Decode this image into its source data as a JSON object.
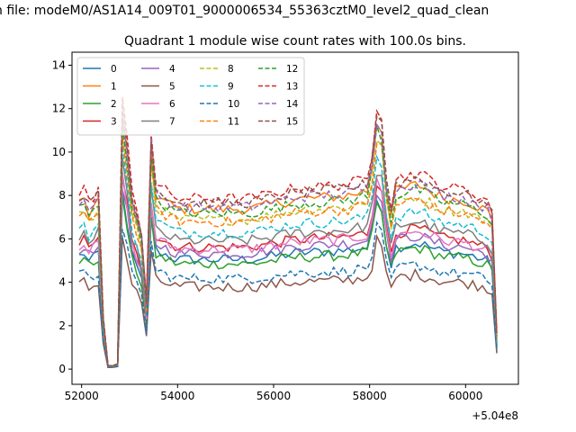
{
  "chart_data": {
    "type": "line",
    "suptitle": "n file: modeM0/AS1A14_009T01_9000006534_55363cztM0_level2_quad_clean",
    "title": "Quadrant 1 module wise count rates with 100.0s bins.",
    "xlabel": "",
    "ylabel": "",
    "x_offset_label": "+5.04e8",
    "xlim": [
      51800,
      61100
    ],
    "ylim": [
      -0.7,
      14.6
    ],
    "xticks": [
      52000,
      54000,
      56000,
      58000,
      60000
    ],
    "xtick_labels": [
      "52000",
      "54000",
      "56000",
      "58000",
      "60000"
    ],
    "yticks": [
      0,
      2,
      4,
      6,
      8,
      10,
      12,
      14
    ],
    "ytick_labels": [
      "0",
      "2",
      "4",
      "6",
      "8",
      "10",
      "12",
      "14"
    ],
    "grid": false,
    "legend_position": "upper-left",
    "legend_columns": 4,
    "x_shape": {
      "start": 51950,
      "step": 100,
      "count": 88,
      "gaps": [
        [
          52650,
          52750
        ]
      ]
    },
    "profile_keypoints": [
      [
        51950,
        1.0
      ],
      [
        52050,
        1.03
      ],
      [
        52150,
        0.95
      ],
      [
        52250,
        0.98
      ],
      [
        52350,
        1.03
      ],
      [
        52450,
        0.3
      ],
      [
        52550,
        0.02
      ],
      [
        52650,
        0.02
      ],
      [
        52750,
        0.03
      ],
      [
        52850,
        1.55
      ],
      [
        52950,
        1.3
      ],
      [
        53050,
        1.0
      ],
      [
        53150,
        0.9
      ],
      [
        53250,
        0.78
      ],
      [
        53350,
        0.4
      ],
      [
        53450,
        1.35
      ],
      [
        53550,
        1.05
      ],
      [
        54000,
        0.97
      ],
      [
        55500,
        0.97
      ],
      [
        56500,
        1.03
      ],
      [
        57500,
        1.05
      ],
      [
        57950,
        1.08
      ],
      [
        58100,
        1.3
      ],
      [
        58200,
        1.7
      ],
      [
        58300,
        1.2
      ],
      [
        58450,
        0.93
      ],
      [
        58550,
        1.08
      ],
      [
        59000,
        1.12
      ],
      [
        59500,
        1.04
      ],
      [
        60000,
        1.02
      ],
      [
        60450,
        0.96
      ],
      [
        60550,
        0.9
      ],
      [
        60650,
        0.2
      ]
    ],
    "series": [
      {
        "name": "0",
        "color": "#1f77b4",
        "dash": "solid",
        "level": 5.2,
        "noise": 0.25
      },
      {
        "name": "1",
        "color": "#ff7f0e",
        "dash": "solid",
        "level": 7.6,
        "noise": 0.25
      },
      {
        "name": "2",
        "color": "#2ca02c",
        "dash": "solid",
        "level": 5.0,
        "noise": 0.25
      },
      {
        "name": "3",
        "color": "#d62728",
        "dash": "solid",
        "level": 5.8,
        "noise": 0.25
      },
      {
        "name": "4",
        "color": "#9467bd",
        "dash": "solid",
        "level": 5.5,
        "noise": 0.25
      },
      {
        "name": "5",
        "color": "#8c564b",
        "dash": "solid",
        "level": 3.9,
        "noise": 0.25
      },
      {
        "name": "6",
        "color": "#e377c2",
        "dash": "solid",
        "level": 5.7,
        "noise": 0.25
      },
      {
        "name": "7",
        "color": "#7f7f7f",
        "dash": "solid",
        "level": 6.1,
        "noise": 0.25
      },
      {
        "name": "8",
        "color": "#bcbd22",
        "dash": "dashed",
        "level": 7.1,
        "noise": 0.25
      },
      {
        "name": "9",
        "color": "#17becf",
        "dash": "dashed",
        "level": 6.5,
        "noise": 0.25
      },
      {
        "name": "10",
        "color": "#1f77b4",
        "dash": "dashed",
        "level": 4.3,
        "noise": 0.25
      },
      {
        "name": "11",
        "color": "#ff7f0e",
        "dash": "dashed",
        "level": 7.0,
        "noise": 0.25
      },
      {
        "name": "12",
        "color": "#2ca02c",
        "dash": "dashed",
        "level": 7.4,
        "noise": 0.25
      },
      {
        "name": "13",
        "color": "#d62728",
        "dash": "dashed",
        "level": 8.1,
        "noise": 0.25
      },
      {
        "name": "14",
        "color": "#9467bd",
        "dash": "dashed",
        "level": 7.7,
        "noise": 0.25
      },
      {
        "name": "15",
        "color": "#8c564b",
        "dash": "dashed",
        "level": 7.9,
        "noise": 0.25
      }
    ]
  }
}
